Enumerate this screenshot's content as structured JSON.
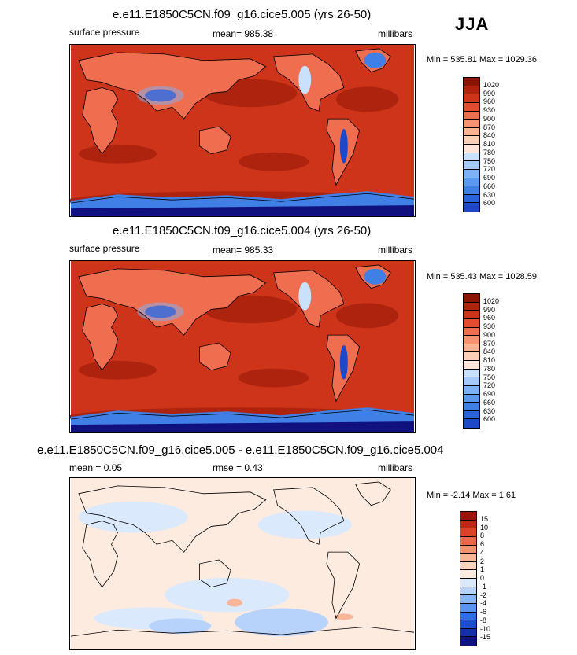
{
  "season": "JJA",
  "palette": {
    "pressure": [
      "#f5f6ff",
      "#10107e",
      "#1e2da8",
      "#1f48c8",
      "#2a63db",
      "#3f7fe6",
      "#5b98ef",
      "#7eb1f5",
      "#a4cbfa",
      "#c9e1fd",
      "#fde6d9",
      "#fcd0b7",
      "#fab494",
      "#f79272",
      "#f06e50",
      "#e24c30",
      "#cd3419",
      "#ae230e",
      "#8c1404"
    ],
    "diff": [
      "#0f1283",
      "#1430ab",
      "#1b4fcf",
      "#2e6fe5",
      "#5a93f0",
      "#8ab5f7",
      "#b7d3fb",
      "#dbe9fd",
      "#fdebe0",
      "#fcd3bd",
      "#f9b597",
      "#f59170",
      "#ea6949",
      "#d8432a",
      "#bf2715",
      "#9a1408"
    ]
  },
  "panels": [
    {
      "title": "e.e11.E1850C5CN.f09_g16.cice5.005 (yrs 26-50)",
      "left_label": "surface pressure",
      "center_label": "mean= 985.38",
      "right_label": "millibars",
      "min_max": "Min = 535.81 Max = 1029.36",
      "colorbar_labels": [
        "1020",
        "990",
        "960",
        "930",
        "900",
        "870",
        "840",
        "810",
        "780",
        "750",
        "720",
        "690",
        "660",
        "630",
        "600"
      ]
    },
    {
      "title": "e.e11.E1850C5CN.f09_g16.cice5.004 (yrs 26-50)",
      "left_label": "surface pressure",
      "center_label": "mean= 985.33",
      "right_label": "millibars",
      "min_max": "Min = 535.43 Max = 1028.59",
      "colorbar_labels": [
        "1020",
        "990",
        "960",
        "930",
        "900",
        "870",
        "840",
        "810",
        "780",
        "750",
        "720",
        "690",
        "660",
        "630",
        "600"
      ]
    },
    {
      "title": "e.e11.E1850C5CN.f09_g16.cice5.005 - e.e11.E1850C5CN.f09_g16.cice5.004",
      "left_label": "mean =   0.05",
      "center_label": "rmse =   0.43",
      "right_label": "millibars",
      "min_max": "Min =  -2.14 Max =   1.61",
      "colorbar_labels": [
        "15",
        "10",
        "8",
        "6",
        "4",
        "2",
        "1",
        "0",
        "-1",
        "-2",
        "-4",
        "-6",
        "-8",
        "-10",
        "-15"
      ]
    }
  ]
}
